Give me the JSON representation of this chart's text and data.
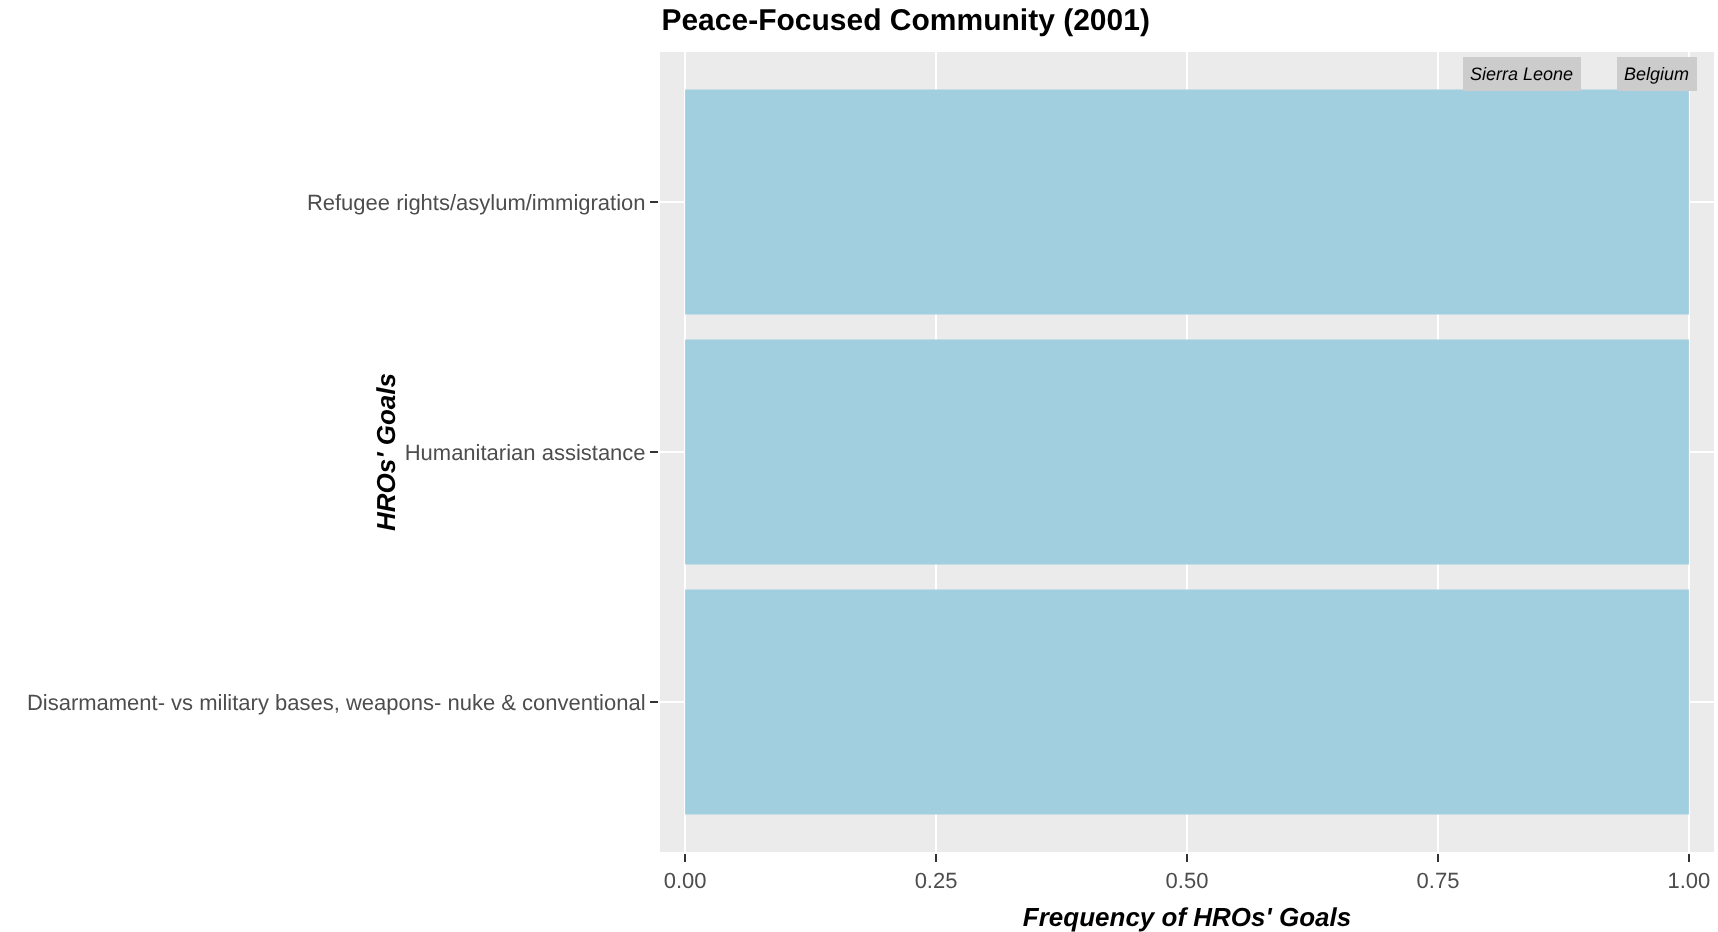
{
  "chart_data": {
    "type": "bar",
    "orientation": "horizontal",
    "title": "Peace-Focused Community (2001)",
    "xlabel": "Frequency of HROs' Goals",
    "ylabel": "HROs' Goals",
    "categories": [
      "Refugee rights/asylum/immigration",
      "Humanitarian assistance",
      "Disarmament- vs military bases, weapons- nuke & conventional"
    ],
    "values": [
      1,
      1,
      1
    ],
    "color": "#a2cfe0",
    "xlim": [
      -0.025,
      1.025
    ],
    "xticks": [
      {
        "value": 0,
        "label": "0.00"
      },
      {
        "value": 0.25,
        "label": "0.25"
      },
      {
        "value": 0.5,
        "label": "0.50"
      },
      {
        "value": 0.75,
        "label": "0.75"
      },
      {
        "value": 1,
        "label": "1.00"
      }
    ],
    "grid": true,
    "annotations": [
      "Sierra Leone",
      "Belgium"
    ]
  }
}
